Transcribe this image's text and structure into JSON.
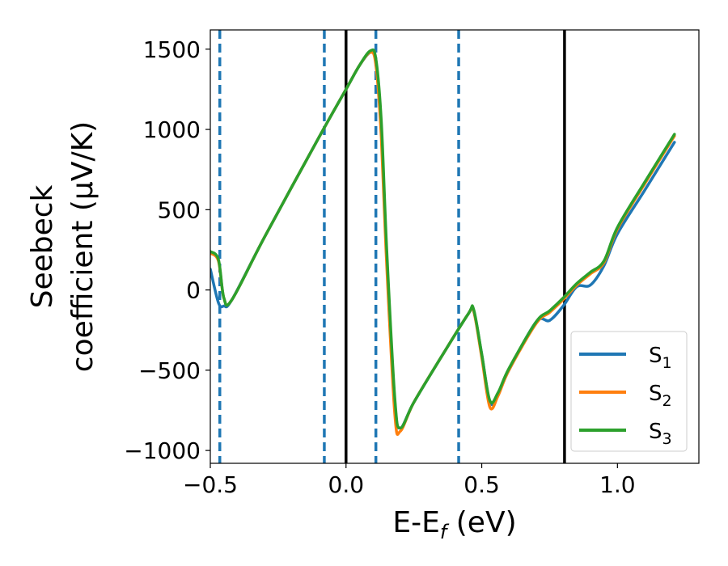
{
  "chart_data": {
    "type": "line",
    "xlabel_main": "E-E",
    "xlabel_sub": "f",
    "xlabel_unit": " (eV)",
    "ylabel_line1": "Seebeck",
    "ylabel_line2": "coefficient  (μV/K)",
    "xlim": [
      -0.5,
      1.3
    ],
    "ylim": [
      -1080,
      1620
    ],
    "xticks": [
      -0.5,
      0.0,
      0.5,
      1.0
    ],
    "xtick_labels": [
      "−0.5",
      "0.0",
      "0.5",
      "1.0"
    ],
    "yticks": [
      -1000,
      -500,
      0,
      500,
      1000,
      1500
    ],
    "ytick_labels": [
      "−1000",
      "−500",
      "0",
      "500",
      "1000",
      "1500"
    ],
    "grid": false,
    "legend_position": "lower-right",
    "vlines_solid": [
      0.0,
      0.805
    ],
    "vlines_dashed": [
      -0.465,
      -0.08,
      0.11,
      0.415
    ],
    "series": [
      {
        "name": "S",
        "sub": "1",
        "color": "#1f77b4",
        "x": [
          -0.5,
          -0.47,
          -0.45,
          -0.42,
          -0.3,
          -0.1,
          0.0,
          0.05,
          0.09,
          0.11,
          0.13,
          0.15,
          0.18,
          0.2,
          0.25,
          0.35,
          0.45,
          0.47,
          0.5,
          0.53,
          0.56,
          0.6,
          0.7,
          0.75,
          0.8,
          0.85,
          0.9,
          0.95,
          1.0,
          1.1,
          1.21
        ],
        "y": [
          130,
          -80,
          -100,
          -60,
          330,
          950,
          1250,
          1400,
          1480,
          1420,
          1000,
          200,
          -700,
          -860,
          -700,
          -420,
          -150,
          -130,
          -400,
          -700,
          -650,
          -500,
          -200,
          -190,
          -100,
          20,
          30,
          150,
          350,
          620,
          920
        ]
      },
      {
        "name": "S",
        "sub": "2",
        "color": "#ff7f0e",
        "x": [
          -0.5,
          -0.47,
          -0.45,
          -0.42,
          -0.3,
          -0.1,
          0.0,
          0.05,
          0.09,
          0.11,
          0.13,
          0.15,
          0.18,
          0.2,
          0.25,
          0.35,
          0.45,
          0.47,
          0.5,
          0.53,
          0.56,
          0.6,
          0.7,
          0.75,
          0.8,
          0.85,
          0.9,
          0.95,
          1.0,
          1.1,
          1.21
        ],
        "y": [
          230,
          180,
          -50,
          -60,
          330,
          950,
          1250,
          1400,
          1480,
          1400,
          950,
          150,
          -780,
          -880,
          -700,
          -420,
          -150,
          -130,
          -420,
          -730,
          -660,
          -500,
          -210,
          -140,
          -60,
          30,
          100,
          170,
          380,
          660,
          960
        ]
      },
      {
        "name": "S",
        "sub": "3",
        "color": "#2ca02c",
        "x": [
          -0.5,
          -0.47,
          -0.45,
          -0.42,
          -0.3,
          -0.1,
          0.0,
          0.05,
          0.09,
          0.11,
          0.13,
          0.15,
          0.18,
          0.2,
          0.25,
          0.35,
          0.45,
          0.47,
          0.5,
          0.53,
          0.56,
          0.6,
          0.7,
          0.75,
          0.8,
          0.85,
          0.9,
          0.95,
          1.0,
          1.1,
          1.21
        ],
        "y": [
          240,
          190,
          -50,
          -60,
          330,
          950,
          1250,
          1400,
          1490,
          1440,
          1050,
          250,
          -680,
          -860,
          -700,
          -420,
          -150,
          -120,
          -400,
          -690,
          -640,
          -490,
          -200,
          -130,
          -50,
          40,
          110,
          180,
          390,
          670,
          970
        ]
      }
    ]
  }
}
